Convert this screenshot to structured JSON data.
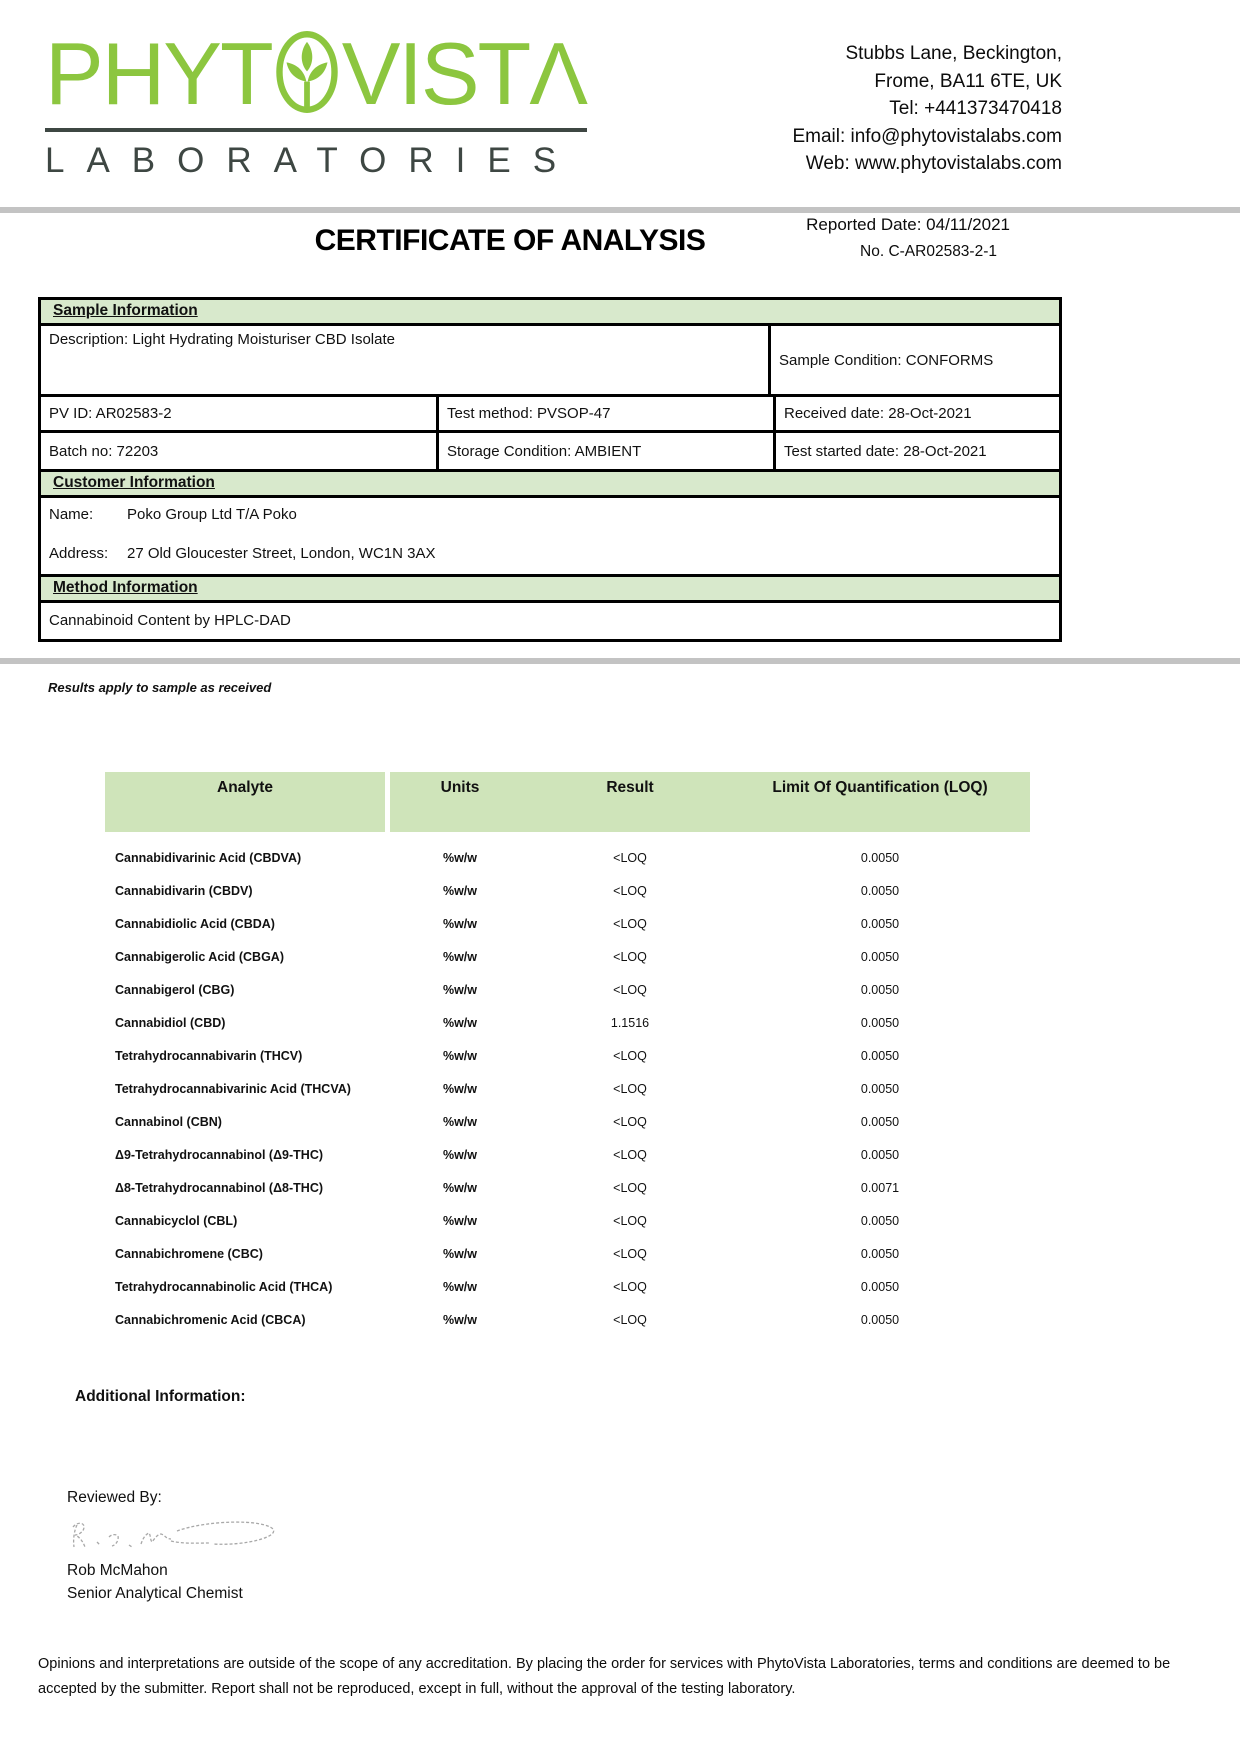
{
  "header": {
    "logo": {
      "text_left": "PHYT",
      "text_right": "VISTΛ",
      "subtitle": "LABORATORIES",
      "leaf_icon": "lotus-leaf-icon"
    },
    "contact_lines": [
      "Stubbs Lane, Beckington,",
      "Frome, BA11 6TE, UK",
      "Tel: +441373470418",
      "Email: info@phytovistalabs.com",
      "Web: www.phytovistalabs.com"
    ]
  },
  "title_block": {
    "title": "CERTIFICATE OF ANALYSIS",
    "reported_date": "Reported Date: 04/11/2021",
    "report_no": "No. C-AR02583-2-1"
  },
  "sample_information": {
    "section_title": "Sample Information",
    "description": "Description: Light Hydrating Moisturiser CBD Isolate",
    "sample_condition": "Sample Condition: CONFORMS",
    "pv_id": "PV ID: AR02583-2",
    "test_method": "Test method: PVSOP-47",
    "received_date": "Received date: 28-Oct-2021",
    "batch_no": "Batch no: 72203",
    "storage_condition": "Storage Condition: AMBIENT",
    "test_started_date": "Test started date: 28-Oct-2021"
  },
  "customer_information": {
    "section_title": "Customer Information",
    "name_label": "Name:",
    "name_value": "Poko Group Ltd T/A Poko",
    "address_label": "Address:",
    "address_value": "27 Old Gloucester Street, London, WC1N 3AX"
  },
  "method_information": {
    "section_title": "Method Information",
    "method": "Cannabinoid Content by HPLC-DAD"
  },
  "results_note": "Results apply to sample as received",
  "results_table": {
    "headers": [
      "Analyte",
      "Units",
      "Result",
      "Limit Of Quantification (LOQ)"
    ],
    "rows": [
      {
        "analyte": "Cannabidivarinic Acid (CBDVA)",
        "units": "%w/w",
        "result": "<LOQ",
        "loq": "0.0050"
      },
      {
        "analyte": "Cannabidivarin (CBDV)",
        "units": "%w/w",
        "result": "<LOQ",
        "loq": "0.0050"
      },
      {
        "analyte": "Cannabidiolic Acid (CBDA)",
        "units": "%w/w",
        "result": "<LOQ",
        "loq": "0.0050"
      },
      {
        "analyte": "Cannabigerolic Acid (CBGA)",
        "units": "%w/w",
        "result": "<LOQ",
        "loq": "0.0050"
      },
      {
        "analyte": "Cannabigerol (CBG)",
        "units": "%w/w",
        "result": "<LOQ",
        "loq": "0.0050"
      },
      {
        "analyte": "Cannabidiol (CBD)",
        "units": "%w/w",
        "result": "1.1516",
        "loq": "0.0050"
      },
      {
        "analyte": "Tetrahydrocannabivarin (THCV)",
        "units": "%w/w",
        "result": "<LOQ",
        "loq": "0.0050"
      },
      {
        "analyte": "Tetrahydrocannabivarinic Acid (THCVA)",
        "units": "%w/w",
        "result": "<LOQ",
        "loq": "0.0050"
      },
      {
        "analyte": "Cannabinol (CBN)",
        "units": "%w/w",
        "result": "<LOQ",
        "loq": "0.0050"
      },
      {
        "analyte": "Δ9-Tetrahydrocannabinol (Δ9-THC)",
        "units": "%w/w",
        "result": "<LOQ",
        "loq": "0.0050"
      },
      {
        "analyte": "Δ8-Tetrahydrocannabinol (Δ8-THC)",
        "units": "%w/w",
        "result": "<LOQ",
        "loq": "0.0071"
      },
      {
        "analyte": "Cannabicyclol (CBL)",
        "units": "%w/w",
        "result": "<LOQ",
        "loq": "0.0050"
      },
      {
        "analyte": "Cannabichromene (CBC)",
        "units": "%w/w",
        "result": "<LOQ",
        "loq": "0.0050"
      },
      {
        "analyte": "Tetrahydrocannabinolic Acid (THCA)",
        "units": "%w/w",
        "result": "<LOQ",
        "loq": "0.0050"
      },
      {
        "analyte": "Cannabichromenic Acid (CBCA)",
        "units": "%w/w",
        "result": "<LOQ",
        "loq": "0.0050"
      }
    ]
  },
  "additional_information_label": "Additional Information:",
  "signature": {
    "reviewed_by_label": "Reviewed By:",
    "name": "Rob McMahon",
    "title": "Senior Analytical Chemist"
  },
  "footer": {
    "disclaimer": "Opinions and interpretations are outside of the scope of any accreditation. By placing the order for services with PhytoVista Laboratories, terms and conditions are deemed to be accepted by the submitter. Report shall not be reproduced, except in full, without the approval of the testing laboratory."
  },
  "colors": {
    "brand_green": "#8cc63f",
    "logo_dark": "#3e4743",
    "section_green": "#d8e9cc",
    "table_header_green": "#cfe4ba",
    "rule_gray": "#c3c3c3"
  }
}
